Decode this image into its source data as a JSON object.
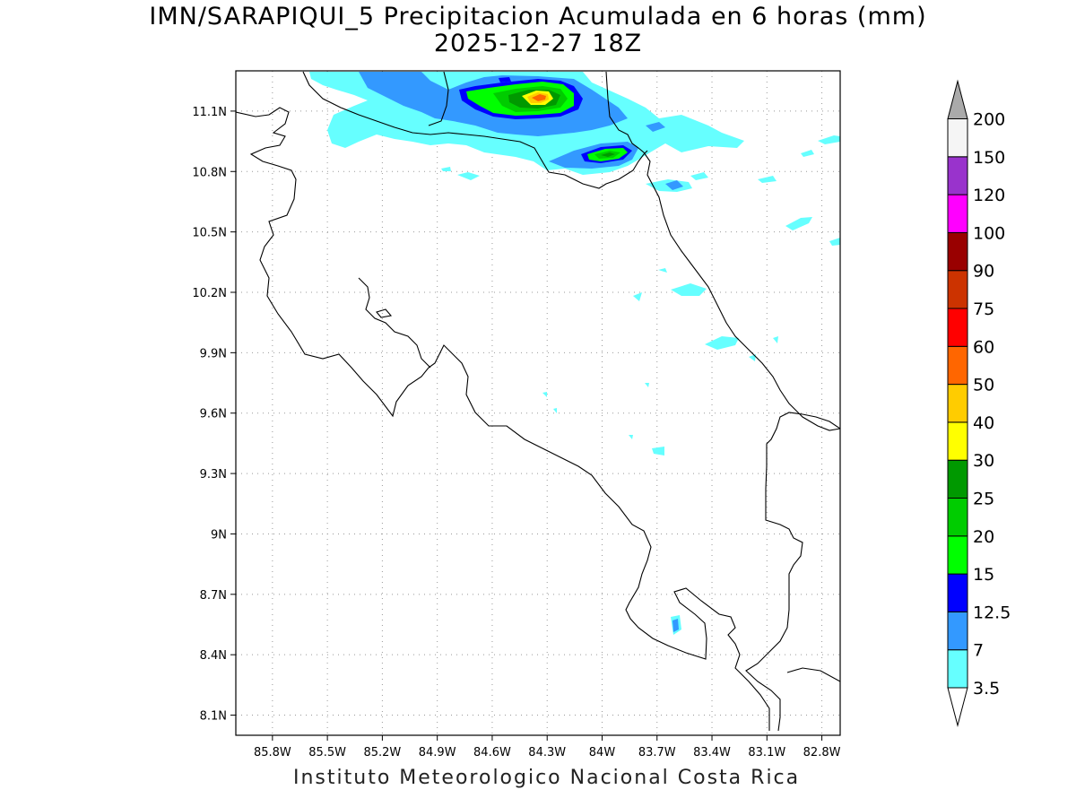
{
  "title": {
    "line1": "IMN/SARAPIQUI_5 Precipitacion Acumulada en 6 horas (mm)",
    "line2": "2025-12-27 18Z"
  },
  "footer": "Instituto Meteorologico Nacional Costa Rica",
  "map": {
    "lon_range": [
      -86.0,
      -82.7
    ],
    "lat_range": [
      8.0,
      11.3
    ],
    "lon_ticks": [
      {
        "value": -85.8,
        "label": "85.8W"
      },
      {
        "value": -85.5,
        "label": "85.5W"
      },
      {
        "value": -85.2,
        "label": "85.2W"
      },
      {
        "value": -84.9,
        "label": "84.9W"
      },
      {
        "value": -84.6,
        "label": "84.6W"
      },
      {
        "value": -84.3,
        "label": "84.3W"
      },
      {
        "value": -84.0,
        "label": "84W"
      },
      {
        "value": -83.7,
        "label": "83.7W"
      },
      {
        "value": -83.4,
        "label": "83.4W"
      },
      {
        "value": -83.1,
        "label": "83.1W"
      },
      {
        "value": -82.8,
        "label": "82.8W"
      }
    ],
    "lat_ticks": [
      {
        "value": 11.1,
        "label": "11.1N"
      },
      {
        "value": 10.8,
        "label": "10.8N"
      },
      {
        "value": 10.5,
        "label": "10.5N"
      },
      {
        "value": 10.2,
        "label": "10.2N"
      },
      {
        "value": 9.9,
        "label": "9.9N"
      },
      {
        "value": 9.6,
        "label": "9.6N"
      },
      {
        "value": 9.3,
        "label": "9.3N"
      },
      {
        "value": 9.0,
        "label": "9N"
      },
      {
        "value": 8.7,
        "label": "8.7N"
      },
      {
        "value": 8.4,
        "label": "8.4N"
      },
      {
        "value": 8.1,
        "label": "8.1N"
      }
    ],
    "grid": true
  },
  "colorbar": {
    "levels": [
      {
        "label": "3.5",
        "color": "#66ffff"
      },
      {
        "label": "7",
        "color": "#3399ff"
      },
      {
        "label": "12.5",
        "color": "#0000ff"
      },
      {
        "label": "15",
        "color": "#00ff00"
      },
      {
        "label": "20",
        "color": "#00cc00"
      },
      {
        "label": "25",
        "color": "#009900"
      },
      {
        "label": "30",
        "color": "#ffff00"
      },
      {
        "label": "40",
        "color": "#ffcc00"
      },
      {
        "label": "50",
        "color": "#ff6600"
      },
      {
        "label": "60",
        "color": "#ff0000"
      },
      {
        "label": "75",
        "color": "#cc3300"
      },
      {
        "label": "90",
        "color": "#990000"
      },
      {
        "label": "100",
        "color": "#ff00ff"
      },
      {
        "label": "120",
        "color": "#9933cc"
      },
      {
        "label": "150",
        "color": "#f5f5f5"
      },
      {
        "label": "200",
        "color": "#aaaaaa"
      }
    ]
  }
}
